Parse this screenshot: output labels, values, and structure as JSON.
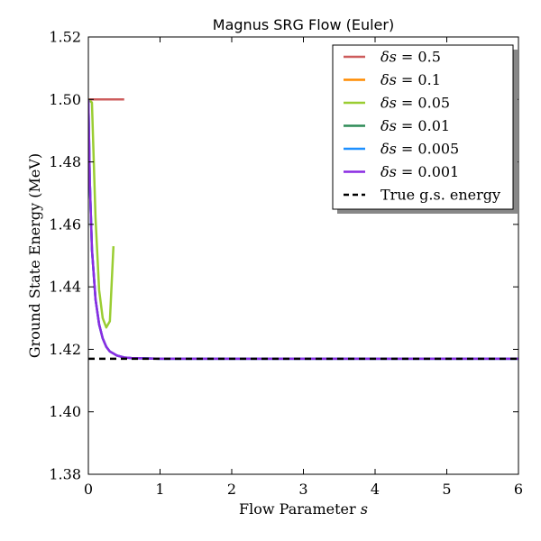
{
  "chart_data": {
    "type": "line",
    "title": "Magnus SRG Flow (Euler)",
    "xlabel": "Flow Parameter ",
    "xlabel_var": "s",
    "ylabel": "Ground State Energy (MeV)",
    "xlim": [
      0,
      6
    ],
    "ylim": [
      1.38,
      1.52
    ],
    "xticks": [
      0,
      1,
      2,
      3,
      4,
      5,
      6
    ],
    "xtick_labels": [
      "0",
      "1",
      "2",
      "3",
      "4",
      "5",
      "6"
    ],
    "yticks": [
      1.38,
      1.4,
      1.42,
      1.44,
      1.46,
      1.48,
      1.5,
      1.52
    ],
    "ytick_labels": [
      "1.38",
      "1.40",
      "1.42",
      "1.44",
      "1.46",
      "1.48",
      "1.50",
      "1.52"
    ],
    "grid": false,
    "legend_position": "top-right",
    "series": [
      {
        "name": "δs = 0.5",
        "legend_symbol": "δs =",
        "legend_value": "0.5",
        "color": "#cd5c5c",
        "style": "solid",
        "x": [
          0,
          0.5
        ],
        "y": [
          1.5,
          1.5
        ]
      },
      {
        "name": "δs = 0.1",
        "legend_symbol": "δs =",
        "legend_value": "0.1",
        "color": "#ff8c00",
        "style": "solid",
        "x": [
          0
        ],
        "y": [
          1.5
        ]
      },
      {
        "name": "δs = 0.05",
        "legend_symbol": "δs =",
        "legend_value": "0.05",
        "color": "#9acd32",
        "style": "solid",
        "x": [
          0,
          0.05,
          0.1,
          0.15,
          0.2,
          0.25,
          0.3,
          0.35
        ],
        "y": [
          1.5,
          1.499,
          1.462,
          1.439,
          1.43,
          1.427,
          1.429,
          1.453
        ]
      },
      {
        "name": "δs = 0.01",
        "legend_symbol": "δs =",
        "legend_value": "0.01",
        "color": "#2e8b57",
        "style": "solid",
        "x": [
          0,
          0.02,
          0.05,
          0.1,
          0.15,
          0.2,
          0.25,
          0.3,
          0.4,
          0.5,
          0.6,
          0.8,
          1.0,
          1.5,
          2.0,
          3.0,
          4.0,
          5.0,
          6.0
        ],
        "y": [
          1.5,
          1.474,
          1.452,
          1.436,
          1.428,
          1.4235,
          1.4208,
          1.4193,
          1.418,
          1.4174,
          1.4172,
          1.4171,
          1.417,
          1.417,
          1.417,
          1.417,
          1.417,
          1.417,
          1.417
        ]
      },
      {
        "name": "δs = 0.005",
        "legend_symbol": "δs =",
        "legend_value": "0.005",
        "color": "#1e90ff",
        "style": "solid",
        "x": [
          0,
          0.02,
          0.05,
          0.1,
          0.15,
          0.2,
          0.25,
          0.3,
          0.4,
          0.5,
          0.6,
          0.8,
          1.0,
          1.5,
          2.0,
          3.0,
          4.0,
          5.0,
          6.0
        ],
        "y": [
          1.5,
          1.474,
          1.452,
          1.436,
          1.428,
          1.4235,
          1.4208,
          1.4193,
          1.418,
          1.4174,
          1.4172,
          1.4171,
          1.417,
          1.417,
          1.417,
          1.417,
          1.417,
          1.417,
          1.417
        ]
      },
      {
        "name": "δs = 0.001",
        "legend_symbol": "δs =",
        "legend_value": "0.001",
        "color": "#8a2be2",
        "style": "solid",
        "x": [
          0,
          0.02,
          0.05,
          0.1,
          0.15,
          0.2,
          0.25,
          0.3,
          0.4,
          0.5,
          0.6,
          0.8,
          1.0,
          1.5,
          2.0,
          3.0,
          4.0,
          5.0,
          6.0
        ],
        "y": [
          1.5,
          1.474,
          1.452,
          1.436,
          1.428,
          1.4235,
          1.4208,
          1.4193,
          1.418,
          1.4174,
          1.4172,
          1.4171,
          1.417,
          1.417,
          1.417,
          1.417,
          1.417,
          1.417,
          1.417
        ]
      },
      {
        "name": "True g.s. energy",
        "legend_symbol": "",
        "legend_value": "True g.s. energy",
        "color": "#000000",
        "style": "dashed",
        "x": [
          0,
          6
        ],
        "y": [
          1.417,
          1.417
        ]
      }
    ]
  }
}
